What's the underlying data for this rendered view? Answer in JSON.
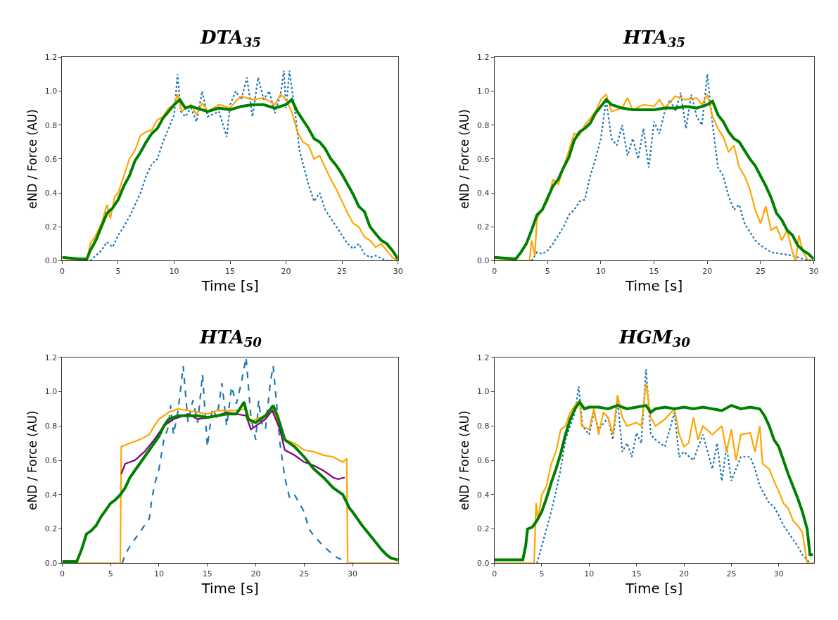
{
  "chart_data": [
    {
      "type": "line",
      "title": "DTA$_{35}$",
      "xlabel": "Time [s]",
      "ylabel": "eND / Force (AU)",
      "xlim": [
        0,
        30
      ],
      "ylim": [
        0,
        1.2
      ],
      "xticks": [
        0,
        5,
        10,
        15,
        20,
        25,
        30
      ],
      "yticks": [
        {
          "value": 0,
          "label": "0.0"
        },
        {
          "value": 0.2,
          "label": "0.2"
        },
        {
          "value": 0.4,
          "label": "0.4"
        },
        {
          "value": 0.6,
          "label": "0.6"
        },
        {
          "value": 0.8,
          "label": "0.8"
        },
        {
          "value": 1.0,
          "label": "1.0"
        },
        {
          "value": 1.2,
          "label": "1.2"
        }
      ],
      "marker": "none",
      "series": [
        {
          "color": "#1f77b4",
          "line_style": "dotted",
          "x": [
            2.5,
            3,
            3.5,
            4,
            4.5,
            5,
            5.5,
            6,
            6.5,
            7,
            7.5,
            8,
            8.5,
            9,
            9.5,
            10,
            10.3,
            10.6,
            11,
            11.5,
            12,
            12.5,
            13,
            14,
            14.7,
            15,
            15.5,
            16,
            16.5,
            17,
            17.5,
            18,
            18.5,
            19,
            19.5,
            19.8,
            20,
            20.3,
            20.8,
            21.2,
            21.6,
            22,
            22.5,
            23,
            23.5,
            24,
            24.5,
            25,
            25.5,
            26,
            26.5,
            27,
            27.5,
            28,
            29,
            30
          ],
          "values": [
            0,
            0.03,
            0.06,
            0.11,
            0.08,
            0.15,
            0.2,
            0.26,
            0.33,
            0.4,
            0.5,
            0.57,
            0.6,
            0.7,
            0.78,
            0.86,
            1.1,
            0.88,
            0.85,
            0.9,
            0.82,
            1.0,
            0.85,
            0.88,
            0.73,
            0.92,
            1.0,
            0.95,
            1.08,
            0.85,
            1.08,
            0.95,
            1.0,
            0.87,
            0.98,
            1.12,
            0.9,
            1.12,
            0.88,
            0.65,
            0.55,
            0.45,
            0.35,
            0.4,
            0.3,
            0.25,
            0.2,
            0.15,
            0.1,
            0.07,
            0.1,
            0.04,
            0.02,
            0.03,
            0,
            0
          ]
        },
        {
          "color": "#ffa500",
          "line_style": "solid",
          "x": [
            0,
            2.2,
            2.5,
            3,
            3.5,
            4,
            4.3,
            4.7,
            5,
            5.5,
            6,
            6.5,
            7,
            7.5,
            8,
            8.5,
            9,
            9.5,
            10,
            10.3,
            10.7,
            11,
            11.5,
            12,
            12.5,
            13,
            14,
            15,
            15.5,
            16,
            17,
            18,
            19,
            19.5,
            20,
            20.5,
            21,
            21.5,
            22,
            22.5,
            23,
            23.5,
            24,
            24.5,
            25,
            25.5,
            26,
            26.5,
            27,
            27.5,
            28,
            28.5,
            29,
            29.5,
            30
          ],
          "values": [
            0,
            0,
            0.1,
            0.15,
            0.22,
            0.33,
            0.25,
            0.38,
            0.4,
            0.5,
            0.6,
            0.65,
            0.74,
            0.76,
            0.77,
            0.83,
            0.85,
            0.9,
            0.92,
            0.98,
            0.88,
            0.9,
            0.92,
            0.86,
            0.93,
            0.88,
            0.92,
            0.9,
            0.94,
            0.97,
            0.95,
            0.96,
            0.92,
            0.98,
            0.95,
            0.88,
            0.76,
            0.7,
            0.68,
            0.6,
            0.62,
            0.55,
            0.48,
            0.42,
            0.35,
            0.28,
            0.22,
            0.2,
            0.14,
            0.12,
            0.08,
            0.1,
            0.06,
            0.02,
            0
          ]
        },
        {
          "color": "#008000",
          "line_style": "solid",
          "x": [
            0,
            1.5,
            2.2,
            2.5,
            3,
            3.5,
            4,
            4.5,
            5,
            5.5,
            6,
            6.5,
            7,
            7.5,
            8,
            8.5,
            9,
            9.5,
            10,
            10.5,
            11,
            11.5,
            12,
            13,
            14,
            15,
            16,
            17,
            18,
            19,
            20,
            20.5,
            21,
            21.5,
            22,
            22.5,
            23,
            23.5,
            24,
            24.5,
            25,
            25.5,
            26,
            26.5,
            27,
            27.5,
            28,
            28.5,
            29,
            29.5,
            30
          ],
          "values": [
            0.02,
            0.01,
            0.01,
            0.06,
            0.12,
            0.2,
            0.28,
            0.31,
            0.36,
            0.44,
            0.5,
            0.59,
            0.64,
            0.7,
            0.75,
            0.78,
            0.84,
            0.88,
            0.92,
            0.95,
            0.9,
            0.91,
            0.9,
            0.88,
            0.9,
            0.89,
            0.91,
            0.92,
            0.92,
            0.9,
            0.92,
            0.95,
            0.88,
            0.83,
            0.78,
            0.72,
            0.7,
            0.66,
            0.6,
            0.56,
            0.51,
            0.45,
            0.39,
            0.32,
            0.29,
            0.2,
            0.16,
            0.12,
            0.1,
            0.06,
            0.01
          ]
        }
      ]
    },
    {
      "type": "line",
      "title": "HTA$_{35}$",
      "xlabel": "Time [s]",
      "ylabel": "eND / Force (AU)",
      "xlim": [
        0,
        30
      ],
      "ylim": [
        0,
        1.2
      ],
      "xticks": [
        0,
        5,
        10,
        15,
        20,
        25,
        30
      ],
      "yticks": [
        {
          "value": 0,
          "label": "0.0"
        },
        {
          "value": 0.2,
          "label": "0.2"
        },
        {
          "value": 0.4,
          "label": "0.4"
        },
        {
          "value": 0.6,
          "label": "0.6"
        },
        {
          "value": 0.8,
          "label": "0.8"
        },
        {
          "value": 1.0,
          "label": "1.0"
        },
        {
          "value": 1.2,
          "label": "1.2"
        }
      ],
      "marker": "none",
      "series": [
        {
          "color": "#1f77b4",
          "line_style": "dotted",
          "x": [
            3.5,
            4,
            4.5,
            5,
            5.5,
            6,
            6.5,
            7,
            7.5,
            8,
            8.5,
            9,
            9.5,
            10,
            10.5,
            11,
            11.5,
            12,
            12.5,
            13,
            13.5,
            14,
            14.5,
            15,
            15.5,
            16,
            16.5,
            17,
            17.5,
            18,
            18.5,
            19,
            19.5,
            20,
            20.5,
            21,
            21.5,
            22,
            22.5,
            23,
            23.5,
            24,
            24.5,
            25,
            25.5,
            26,
            27,
            28,
            29,
            30
          ],
          "values": [
            0,
            0.05,
            0.04,
            0.06,
            0.1,
            0.15,
            0.2,
            0.27,
            0.3,
            0.35,
            0.36,
            0.5,
            0.6,
            0.72,
            0.95,
            0.72,
            0.68,
            0.8,
            0.62,
            0.72,
            0.6,
            0.78,
            0.55,
            0.82,
            0.75,
            0.88,
            0.95,
            0.88,
            0.99,
            0.78,
            0.98,
            0.85,
            0.8,
            1.1,
            0.8,
            0.55,
            0.5,
            0.38,
            0.3,
            0.33,
            0.22,
            0.17,
            0.12,
            0.09,
            0.07,
            0.05,
            0.04,
            0.03,
            0.01,
            0
          ]
        },
        {
          "color": "#ffa500",
          "line_style": "solid",
          "x": [
            0,
            3.3,
            3.5,
            3.8,
            4,
            4.5,
            5,
            5.5,
            6,
            6.5,
            7,
            7.5,
            8,
            8.5,
            9,
            9.5,
            10,
            10.5,
            11,
            12,
            12.5,
            13,
            14,
            15,
            15.5,
            16,
            17,
            18,
            19,
            19.5,
            20,
            20.5,
            21,
            21.5,
            22,
            22.5,
            23,
            23.5,
            24,
            24.5,
            25,
            25.5,
            26,
            26.5,
            27,
            27.5,
            28,
            28.3,
            28.6,
            29,
            29.5,
            30
          ],
          "values": [
            0,
            0,
            0.12,
            0.03,
            0.25,
            0.3,
            0.35,
            0.48,
            0.45,
            0.55,
            0.65,
            0.75,
            0.74,
            0.8,
            0.84,
            0.88,
            0.95,
            0.98,
            0.88,
            0.9,
            0.96,
            0.89,
            0.92,
            0.91,
            0.95,
            0.9,
            0.97,
            0.95,
            0.96,
            0.92,
            0.98,
            0.85,
            0.78,
            0.73,
            0.64,
            0.68,
            0.55,
            0.5,
            0.42,
            0.3,
            0.22,
            0.32,
            0.18,
            0.2,
            0.12,
            0.18,
            0.05,
            0,
            0.15,
            0.05,
            0,
            0
          ]
        },
        {
          "color": "#008000",
          "line_style": "solid",
          "x": [
            0,
            2,
            2.5,
            3,
            3.5,
            4,
            4.5,
            5,
            5.5,
            6,
            6.5,
            7,
            7.5,
            8,
            8.5,
            9,
            9.5,
            10,
            10.5,
            11,
            12,
            13,
            14,
            15,
            16,
            17,
            18,
            19,
            20,
            20.5,
            21,
            21.5,
            22,
            22.5,
            23,
            23.5,
            24,
            24.5,
            25,
            25.5,
            26,
            26.5,
            27,
            27.5,
            28,
            28.5,
            29,
            29.5,
            30
          ],
          "values": [
            0.02,
            0.01,
            0.05,
            0.1,
            0.18,
            0.27,
            0.3,
            0.37,
            0.44,
            0.48,
            0.55,
            0.61,
            0.71,
            0.76,
            0.78,
            0.81,
            0.87,
            0.91,
            0.95,
            0.92,
            0.9,
            0.89,
            0.89,
            0.89,
            0.9,
            0.9,
            0.91,
            0.9,
            0.92,
            0.94,
            0.86,
            0.82,
            0.76,
            0.72,
            0.7,
            0.65,
            0.6,
            0.56,
            0.5,
            0.44,
            0.37,
            0.28,
            0.24,
            0.18,
            0.15,
            0.09,
            0.06,
            0.04,
            0.01
          ]
        }
      ]
    },
    {
      "type": "line",
      "title": "HTA$_{50}$",
      "xlabel": "Time [s]",
      "ylabel": "eND / Force (AU)",
      "xlim": [
        0,
        34.7
      ],
      "ylim": [
        0,
        1.2
      ],
      "xticks": [
        0,
        5,
        10,
        15,
        20,
        25,
        30
      ],
      "yticks": [
        {
          "value": 0,
          "label": "0.0"
        },
        {
          "value": 0.2,
          "label": "0.2"
        },
        {
          "value": 0.4,
          "label": "0.4"
        },
        {
          "value": 0.6,
          "label": "0.6"
        },
        {
          "value": 0.8,
          "label": "0.8"
        },
        {
          "value": 1.0,
          "label": "1.0"
        },
        {
          "value": 1.2,
          "label": "1.2"
        }
      ],
      "marker": "none",
      "series": [
        {
          "color": "#1f77b4",
          "line_style": "dashed",
          "x": [
            6.2,
            6.5,
            7,
            8,
            9,
            9.2,
            9.5,
            10,
            10.5,
            11,
            11.2,
            11.5,
            12,
            12.5,
            13,
            13.5,
            14,
            14.5,
            15,
            15.5,
            16,
            16.5,
            17,
            17.5,
            18,
            18.5,
            19,
            19.5,
            20,
            20.3,
            20.6,
            21,
            21.5,
            21.8,
            22.2,
            22.5,
            23,
            23.5,
            24,
            25,
            25.5,
            26,
            27,
            28,
            28.5,
            29,
            29.5,
            30
          ],
          "values": [
            0,
            0.05,
            0.1,
            0.18,
            0.26,
            0.35,
            0.45,
            0.55,
            0.72,
            0.8,
            0.92,
            0.75,
            0.9,
            1.15,
            0.82,
            0.95,
            0.82,
            1.1,
            0.68,
            0.9,
            0.85,
            1.05,
            0.8,
            1.03,
            0.93,
            1.05,
            1.2,
            0.85,
            0.72,
            0.95,
            0.82,
            0.78,
            1.05,
            1.15,
            0.9,
            0.7,
            0.5,
            0.38,
            0.4,
            0.3,
            0.2,
            0.16,
            0.1,
            0.05,
            0.03,
            0.02,
            0,
            0
          ]
        },
        {
          "color": "#ffa500",
          "line_style": "solid",
          "x": [
            0,
            6,
            6.1,
            7,
            8,
            9,
            9.5,
            10,
            11,
            12,
            13,
            14,
            15,
            16,
            17,
            18,
            19,
            19.5,
            20,
            21,
            21.7,
            22.3,
            23,
            24,
            25,
            26,
            27,
            28,
            29,
            29.4,
            29.5,
            34.7
          ],
          "values": [
            0,
            0,
            0.68,
            0.7,
            0.72,
            0.75,
            0.8,
            0.84,
            0.88,
            0.9,
            0.89,
            0.88,
            0.87,
            0.89,
            0.89,
            0.89,
            0.9,
            0.82,
            0.84,
            0.86,
            0.91,
            0.82,
            0.72,
            0.7,
            0.66,
            0.65,
            0.63,
            0.62,
            0.59,
            0.61,
            0,
            0
          ]
        },
        {
          "color": "#800080",
          "line_style": "solid",
          "x": [
            6.1,
            6.5,
            7.5,
            8.5,
            9.5,
            10.5,
            11.5,
            13,
            14,
            15,
            16,
            17,
            18,
            19,
            19.5,
            20,
            21,
            21.7,
            22.5,
            23,
            24,
            25,
            26,
            27,
            28,
            28.5,
            29.2
          ],
          "values": [
            0.52,
            0.58,
            0.6,
            0.65,
            0.72,
            0.8,
            0.84,
            0.87,
            0.84,
            0.85,
            0.86,
            0.88,
            0.87,
            0.86,
            0.78,
            0.8,
            0.84,
            0.89,
            0.78,
            0.66,
            0.63,
            0.59,
            0.57,
            0.54,
            0.5,
            0.49,
            0.5
          ]
        },
        {
          "color": "#008000",
          "line_style": "solid",
          "x": [
            0,
            1.5,
            2,
            2.5,
            3,
            3.5,
            4,
            4.5,
            5,
            5.5,
            6,
            6.5,
            7,
            7.5,
            8,
            8.5,
            9,
            9.5,
            10,
            10.5,
            11,
            12,
            13,
            14,
            15,
            16,
            17,
            18,
            18.8,
            19.2,
            20,
            21,
            21.8,
            22.3,
            23,
            24,
            25,
            26,
            27,
            28,
            29,
            29.7,
            30,
            31,
            32,
            33,
            33.5,
            34,
            34.7
          ],
          "values": [
            0.01,
            0.01,
            0.08,
            0.17,
            0.19,
            0.22,
            0.27,
            0.31,
            0.35,
            0.37,
            0.4,
            0.44,
            0.5,
            0.54,
            0.58,
            0.62,
            0.66,
            0.7,
            0.74,
            0.8,
            0.84,
            0.86,
            0.86,
            0.86,
            0.85,
            0.86,
            0.87,
            0.87,
            0.94,
            0.84,
            0.82,
            0.86,
            0.92,
            0.85,
            0.72,
            0.68,
            0.62,
            0.55,
            0.5,
            0.44,
            0.4,
            0.32,
            0.3,
            0.22,
            0.15,
            0.08,
            0.05,
            0.03,
            0.02
          ]
        }
      ]
    },
    {
      "type": "line",
      "title": "HGM$_{30}$",
      "xlabel": "Time [s]",
      "ylabel": "eND / Force (AU)",
      "xlim": [
        0,
        33.7
      ],
      "ylim": [
        0,
        1.2
      ],
      "xticks": [
        0,
        5,
        10,
        15,
        20,
        25,
        30
      ],
      "yticks": [
        {
          "value": 0,
          "label": "0.0"
        },
        {
          "value": 0.2,
          "label": "0.2"
        },
        {
          "value": 0.4,
          "label": "0.4"
        },
        {
          "value": 0.6,
          "label": "0.6"
        },
        {
          "value": 0.8,
          "label": "0.8"
        },
        {
          "value": 1.0,
          "label": "1.0"
        },
        {
          "value": 1.2,
          "label": "1.2"
        }
      ],
      "marker": "none",
      "series": [
        {
          "color": "#1f77b4",
          "line_style": "dotted",
          "x": [
            4.5,
            5,
            5.5,
            6,
            6.5,
            7,
            7.5,
            8,
            8.5,
            8.9,
            9.3,
            10,
            10.5,
            11,
            12,
            12.5,
            13,
            13.5,
            14,
            14.5,
            15,
            15.5,
            16,
            16.5,
            17,
            18,
            19,
            19.5,
            20,
            21,
            22,
            23,
            23.5,
            24,
            24.5,
            25,
            26,
            27,
            27.5,
            28,
            28.5,
            29,
            29.5,
            30,
            30.5,
            31,
            31.5,
            32,
            32.5,
            33,
            33.3
          ],
          "values": [
            0,
            0.1,
            0.2,
            0.3,
            0.42,
            0.55,
            0.72,
            0.8,
            0.88,
            1.03,
            0.8,
            0.75,
            0.88,
            0.78,
            0.85,
            0.72,
            0.95,
            0.65,
            0.7,
            0.62,
            0.76,
            0.7,
            1.13,
            0.75,
            0.72,
            0.68,
            0.88,
            0.62,
            0.65,
            0.6,
            0.75,
            0.55,
            0.7,
            0.48,
            0.68,
            0.48,
            0.62,
            0.62,
            0.55,
            0.45,
            0.4,
            0.35,
            0.33,
            0.28,
            0.22,
            0.18,
            0.14,
            0.1,
            0.05,
            0.02,
            0
          ]
        },
        {
          "color": "#ffa500",
          "line_style": "solid",
          "x": [
            0,
            4.2,
            4.4,
            4.6,
            5,
            5.5,
            6,
            6.5,
            7,
            7.5,
            8,
            8.5,
            9,
            9.2,
            10,
            10.5,
            11,
            11.5,
            12,
            12.5,
            13,
            13.5,
            14,
            15,
            15.5,
            16,
            16.5,
            17,
            18,
            19,
            19.5,
            20,
            20.5,
            21,
            21.5,
            22,
            23,
            24,
            24.5,
            25,
            25.5,
            26,
            27,
            27.5,
            28,
            28.3,
            29,
            29.5,
            30,
            30.5,
            31,
            31.5,
            32,
            32.5,
            33,
            33.7
          ],
          "values": [
            0,
            0,
            0.35,
            0.25,
            0.4,
            0.45,
            0.58,
            0.65,
            0.78,
            0.8,
            0.88,
            0.92,
            0.95,
            0.8,
            0.78,
            0.9,
            0.75,
            0.88,
            0.85,
            0.75,
            0.98,
            0.85,
            0.8,
            0.82,
            0.8,
            1.05,
            0.85,
            0.8,
            0.84,
            0.9,
            0.75,
            0.68,
            0.7,
            0.85,
            0.72,
            0.8,
            0.75,
            0.8,
            0.65,
            0.78,
            0.6,
            0.75,
            0.76,
            0.65,
            0.8,
            0.58,
            0.55,
            0.48,
            0.42,
            0.35,
            0.32,
            0.25,
            0.22,
            0.18,
            0,
            0
          ]
        },
        {
          "color": "#008000",
          "line_style": "solid",
          "x": [
            0,
            3,
            3.3,
            3.5,
            4,
            4.5,
            5,
            5.5,
            6,
            6.5,
            7,
            7.5,
            8,
            8.5,
            9,
            9.5,
            10,
            11,
            12,
            13,
            14,
            15,
            16,
            16.5,
            17,
            18,
            19,
            20,
            21,
            22,
            23,
            24,
            25,
            26,
            27,
            28,
            28.5,
            29,
            29.5,
            30,
            30.5,
            31,
            31.5,
            32,
            32.5,
            33,
            33.3,
            33.6
          ],
          "values": [
            0.02,
            0.02,
            0.1,
            0.2,
            0.21,
            0.25,
            0.3,
            0.38,
            0.47,
            0.55,
            0.64,
            0.75,
            0.84,
            0.9,
            0.94,
            0.9,
            0.91,
            0.91,
            0.9,
            0.92,
            0.9,
            0.91,
            0.92,
            0.88,
            0.9,
            0.91,
            0.9,
            0.91,
            0.9,
            0.91,
            0.9,
            0.89,
            0.92,
            0.9,
            0.91,
            0.9,
            0.86,
            0.8,
            0.72,
            0.68,
            0.6,
            0.52,
            0.45,
            0.38,
            0.3,
            0.2,
            0.05,
            0.05
          ]
        }
      ]
    }
  ]
}
